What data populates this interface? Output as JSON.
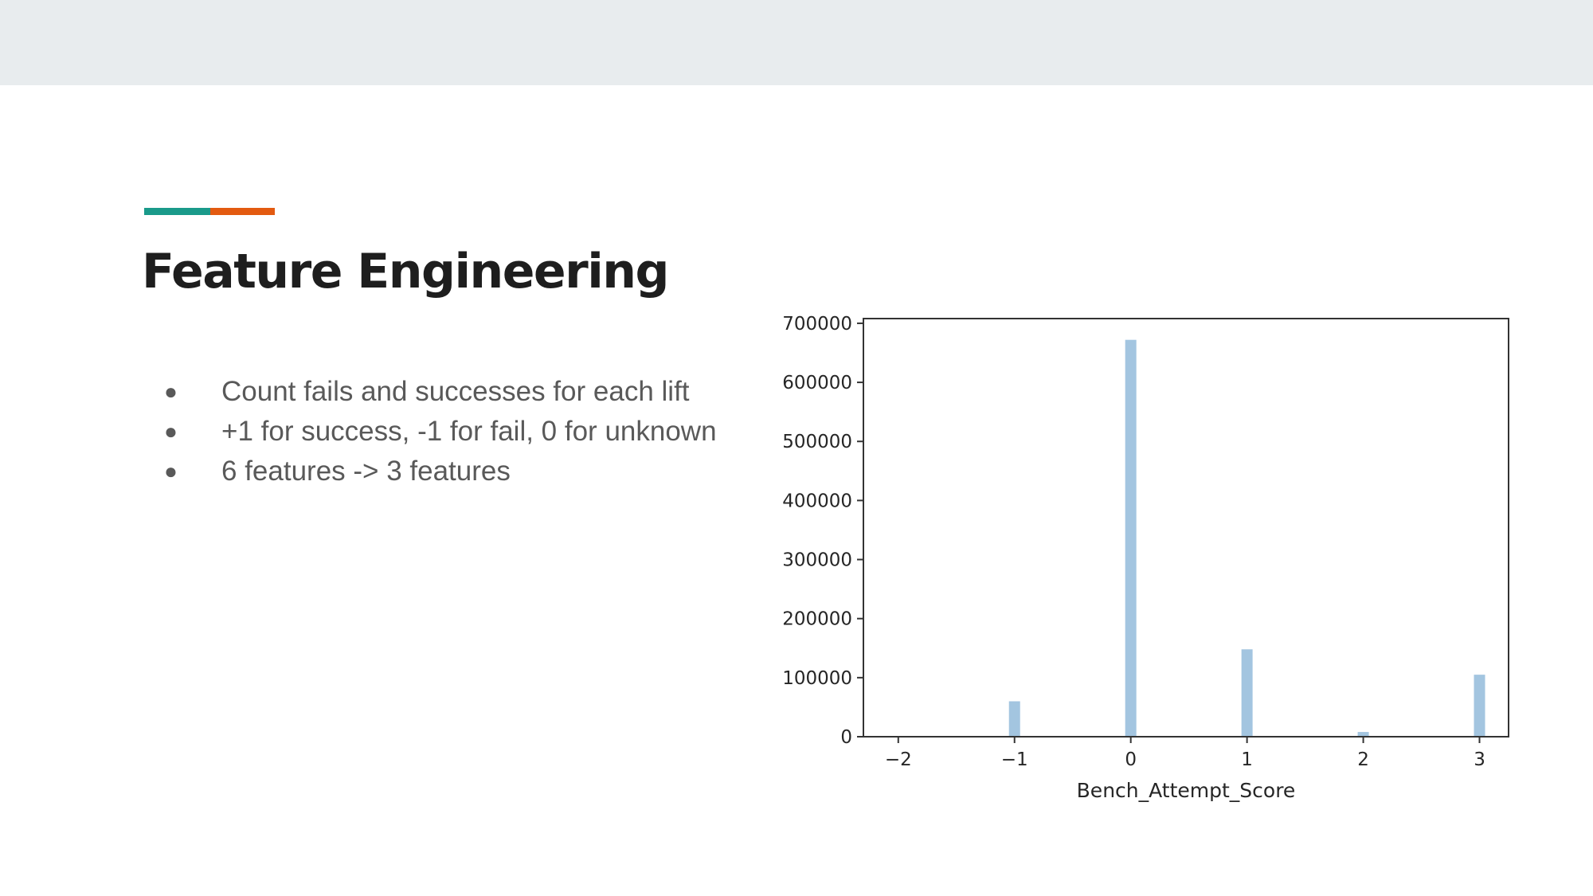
{
  "slide": {
    "title": "Feature Engineering",
    "accent_colors": [
      "#1a9a8a",
      "#e35a10"
    ],
    "bullets": [
      "Count fails and successes for each lift",
      "+1 for success, -1 for fail, 0 for unknown",
      "6 features -> 3 features"
    ]
  },
  "chart_data": {
    "type": "bar",
    "xlabel": "Bench_Attempt_Score",
    "ylabel": "",
    "x": [
      -1,
      0,
      1,
      2,
      3
    ],
    "values": [
      60000,
      672000,
      148000,
      8000,
      105000
    ],
    "xlim": [
      -2.3,
      3.25
    ],
    "ylim": [
      0,
      708000
    ],
    "xticks": [
      -2,
      -1,
      0,
      1,
      2,
      3
    ],
    "xtick_labels": [
      "−2",
      "−1",
      "0",
      "1",
      "2",
      "3"
    ],
    "yticks": [
      0,
      100000,
      200000,
      300000,
      400000,
      500000,
      600000,
      700000
    ],
    "ytick_labels": [
      "0",
      "100000",
      "200000",
      "300000",
      "400000",
      "500000",
      "600000",
      "700000"
    ],
    "bar_color": "#a3c5e0",
    "grid": false
  }
}
